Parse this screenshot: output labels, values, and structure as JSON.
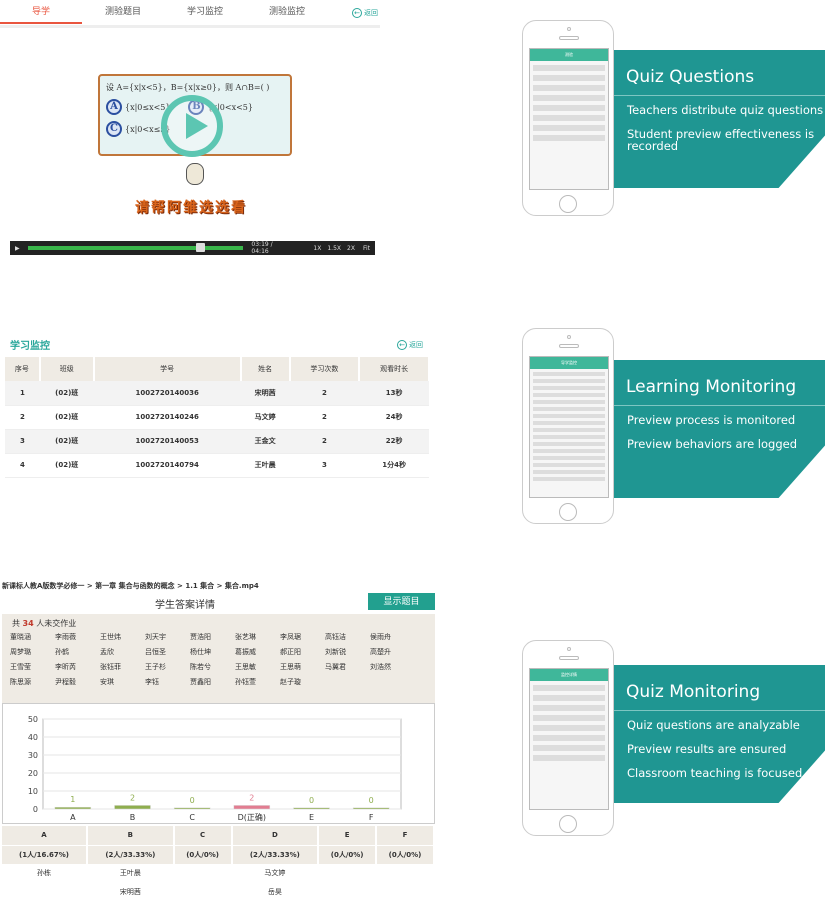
{
  "video": {
    "tabs": [
      "导学",
      "测验题目",
      "学习监控",
      "测验监控"
    ],
    "back": "返回",
    "question": "设 A={x|x<5}，B={x|x≥0}，则 A∩B=(   )",
    "options": [
      {
        "letter": "A",
        "text": "{x|0≤x<5}"
      },
      {
        "letter": "B",
        "text": "{x|0<x<5}"
      },
      {
        "letter": "C",
        "text": "{x|0<x≤5}"
      }
    ],
    "slogan": "请帮阿雏选选看",
    "time": "03:19 / 04:16",
    "progress_percent": 78,
    "speeds": [
      "1X",
      "1.5X",
      "2X",
      "Fit"
    ]
  },
  "monitor": {
    "title": "学习监控",
    "back": "返回",
    "headers": [
      "序号",
      "班级",
      "学号",
      "姓名",
      "学习次数",
      "观看时长"
    ],
    "rows": [
      [
        "1",
        "(02)班",
        "1002720140036",
        "宋明茜",
        "2",
        "13秒"
      ],
      [
        "2",
        "(02)班",
        "1002720140246",
        "马文婷",
        "2",
        "24秒"
      ],
      [
        "3",
        "(02)班",
        "1002720140053",
        "王金文",
        "2",
        "22秒"
      ],
      [
        "4",
        "(02)班",
        "1002720140794",
        "王叶晨",
        "3",
        "1分4秒"
      ]
    ]
  },
  "answers": {
    "breadcrumb": "新课标人教A版数学必修一 > 第一章 集合与函数的概念 > 1.1 集合 > 集合.mp4",
    "title": "学生答案详情",
    "show_button": "显示题目",
    "count_prefix": "共",
    "count": "34",
    "count_suffix": "人未交作业",
    "students": [
      "董晓涵",
      "李雨薇",
      "王世炜",
      "刘天宇",
      "贾浩阳",
      "张艺琳",
      "李凤琚",
      "高钰洁",
      "侯雨舟",
      "周梦璐",
      "孙鹤",
      "孟欣",
      "吕恒圣",
      "杨仕坤",
      "葛振威",
      "郝正阳",
      "刘新锐",
      "高楚升",
      "王雪莹",
      "李昕芮",
      "张钰菲",
      "王子杉",
      "陈若兮",
      "王思敏",
      "王思萌",
      "马翼君",
      "刘浩然",
      "陈思源",
      "尹程毅",
      "安琪",
      "李钰",
      "贾鑫阳",
      "孙钰萱",
      "赵子璇"
    ],
    "table_headers": [
      "A",
      "B",
      "C",
      "D",
      "E",
      "F"
    ],
    "table_stats": [
      "(1人/16.67%)",
      "(2人/33.33%)",
      "(0人/0%)",
      "(2人/33.33%)",
      "(0人/0%)",
      "(0人/0%)"
    ],
    "table_names": [
      [
        "孙栋",
        "王叶晨",
        "",
        "马文婷",
        "",
        ""
      ],
      [
        "",
        "宋明茜",
        "",
        "岳昊",
        "",
        ""
      ]
    ]
  },
  "chart_data": {
    "type": "bar",
    "categories": [
      "A",
      "B",
      "C",
      "D(正确)",
      "E",
      "F"
    ],
    "values": [
      1,
      2,
      0,
      2,
      0,
      0
    ],
    "ylim": [
      0,
      50
    ],
    "yticks": [
      0,
      10,
      20,
      30,
      40,
      50
    ],
    "grid": true,
    "colors": [
      "#8fae4f",
      "#8fae4f",
      "#8fae4f",
      "#e27d91",
      "#8fae4f",
      "#8fae4f"
    ]
  },
  "features": [
    {
      "title": "Quiz Questions",
      "points": [
        "Teachers distribute quiz questions",
        "Student preview effectiveness is recorded"
      ],
      "screen_title": "测验"
    },
    {
      "title": "Learning Monitoring",
      "points": [
        "Preview process is monitored",
        "Preview behaviors are logged"
      ],
      "screen_title": "导学监控"
    },
    {
      "title": "Quiz Monitoring",
      "points": [
        "Quiz questions are analyzable",
        "Preview results are ensured",
        "Classroom teaching is focused"
      ],
      "screen_title": "监控详情"
    }
  ],
  "accent": "#1f9692"
}
